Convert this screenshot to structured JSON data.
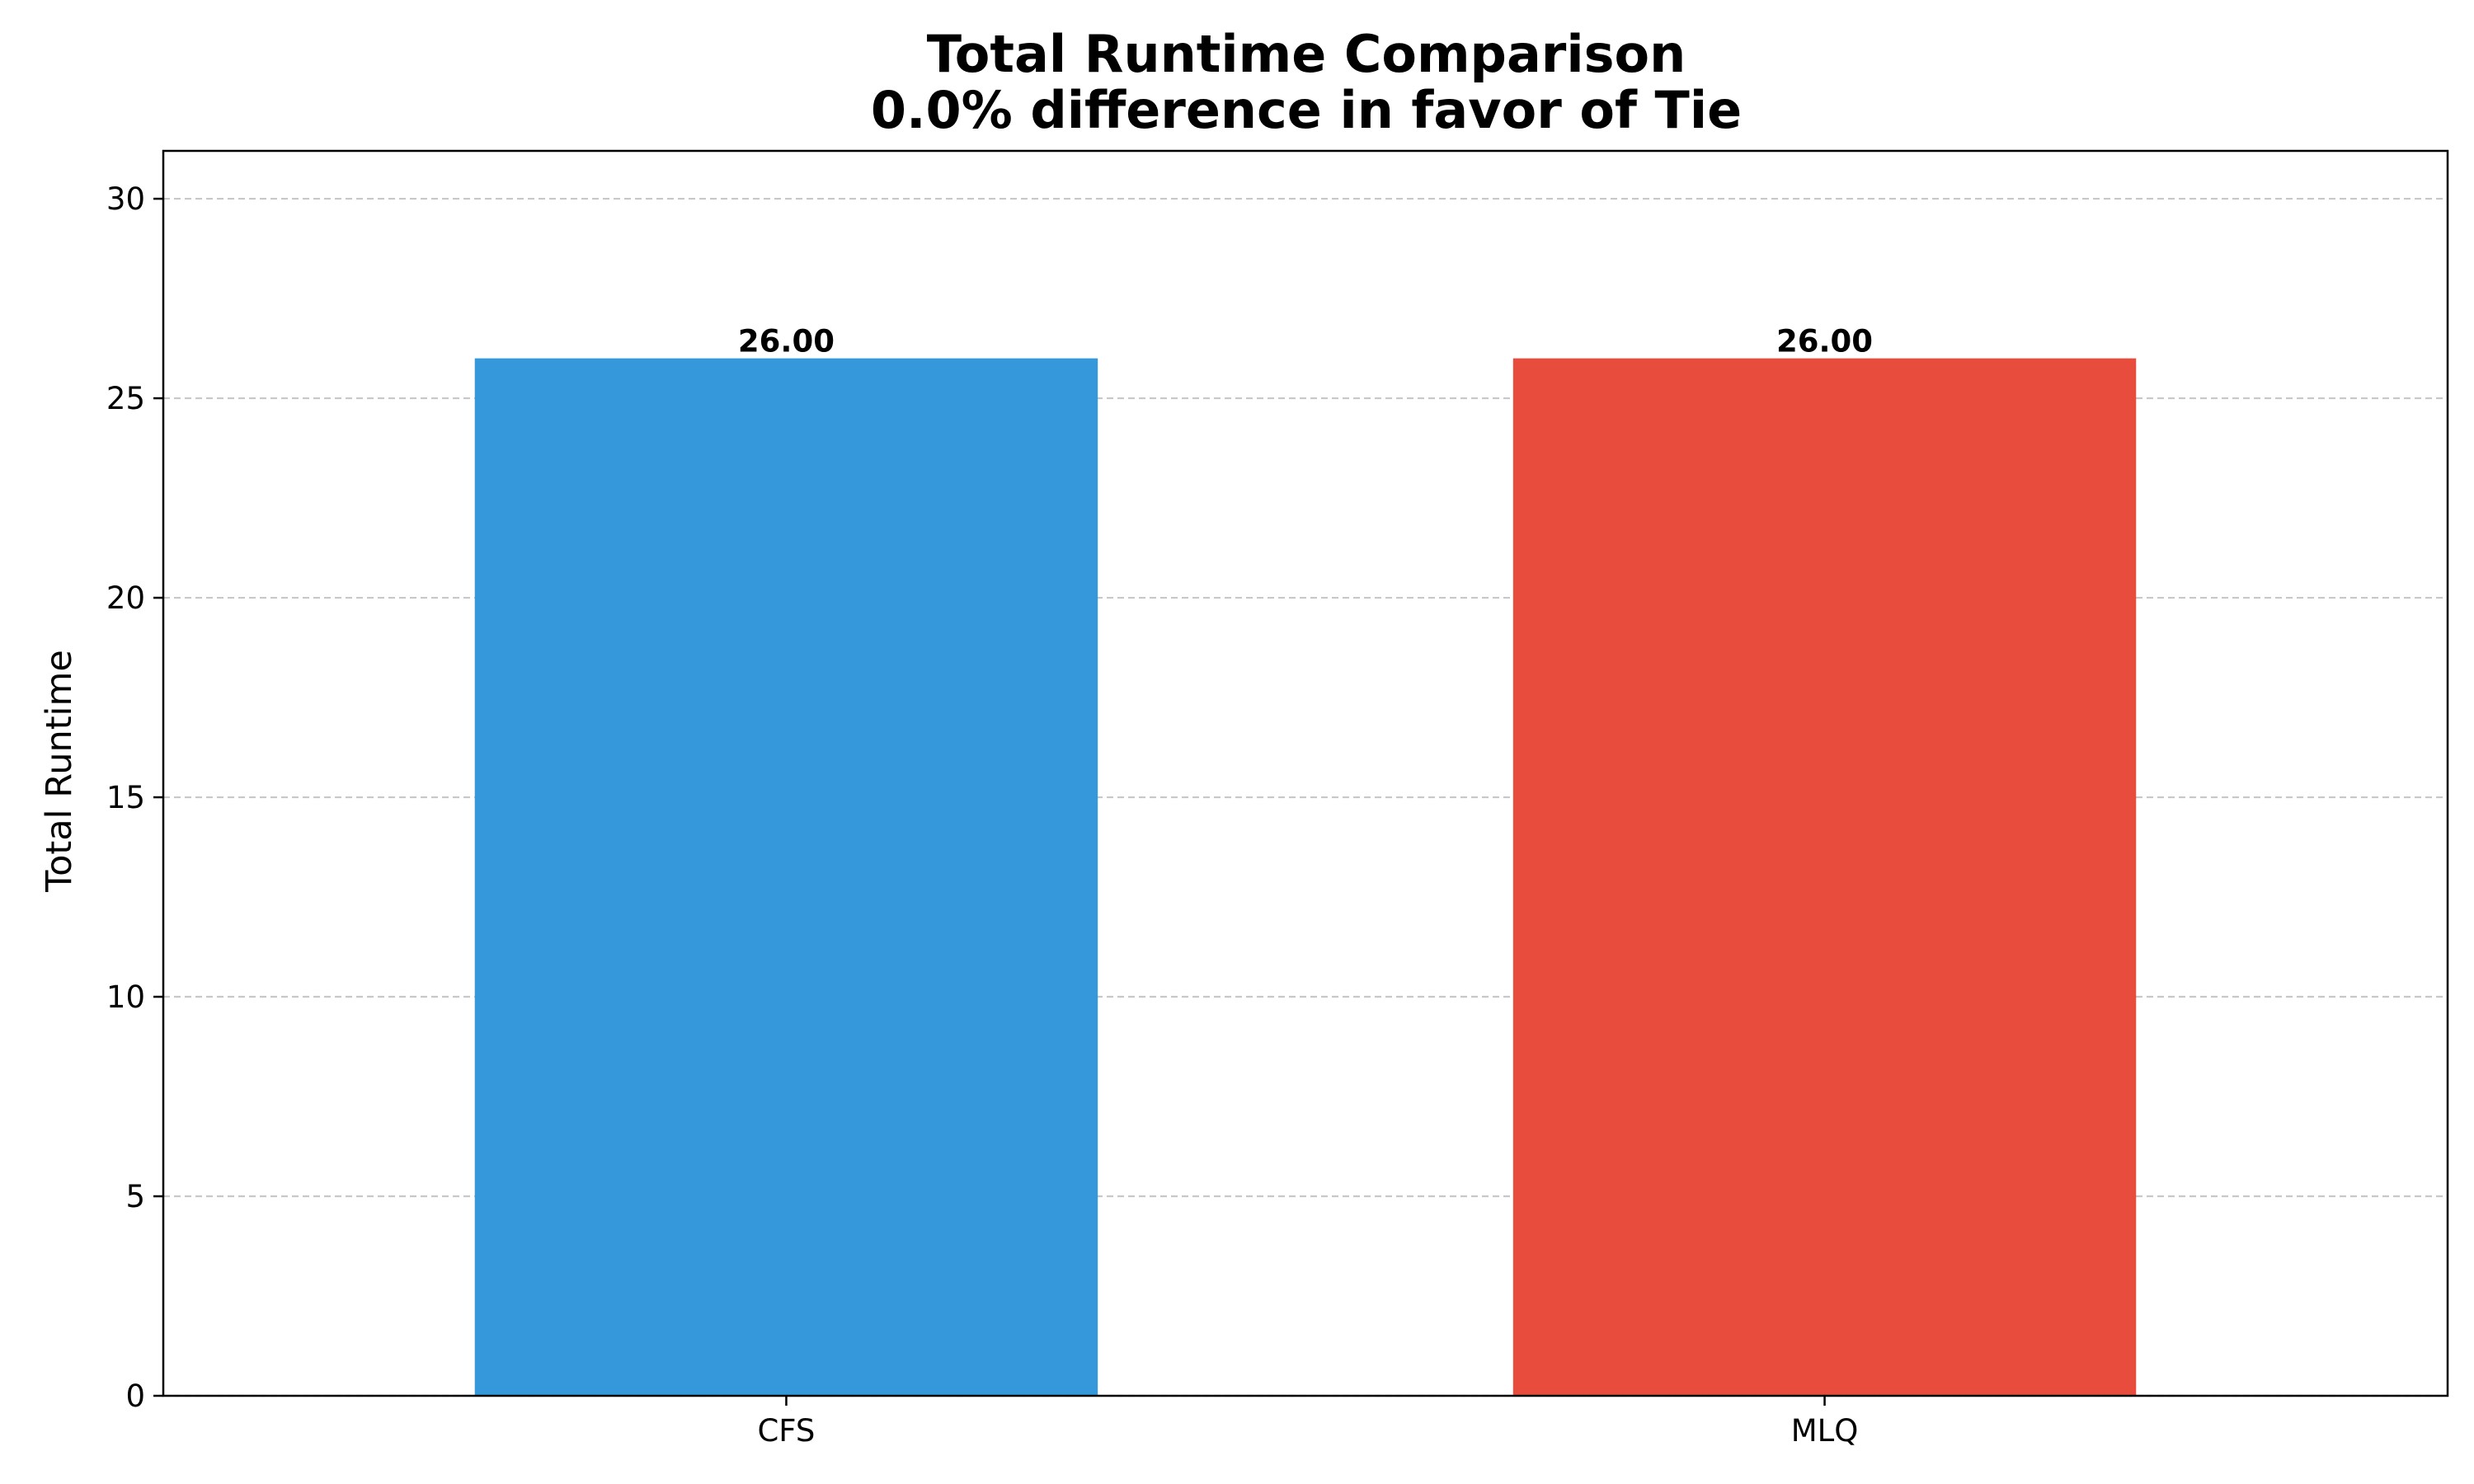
{
  "chart_data": {
    "type": "bar",
    "title": "Total Runtime Comparison",
    "subtitle": "0.0% difference in favor of Tie",
    "xlabel": "",
    "ylabel": "Total Runtime",
    "categories": [
      "CFS",
      "MLQ"
    ],
    "values": [
      26.0,
      26.0
    ],
    "value_labels": [
      "26.00",
      "26.00"
    ],
    "bar_colors": [
      "#3498db",
      "#e74c3c"
    ],
    "ylim": [
      0,
      31.2
    ],
    "yticks": [
      0,
      5,
      10,
      15,
      20,
      25,
      30
    ],
    "ytick_labels": [
      "0",
      "5",
      "10",
      "15",
      "20",
      "25",
      "30"
    ],
    "grid": "y, dashed",
    "legend": "none"
  }
}
